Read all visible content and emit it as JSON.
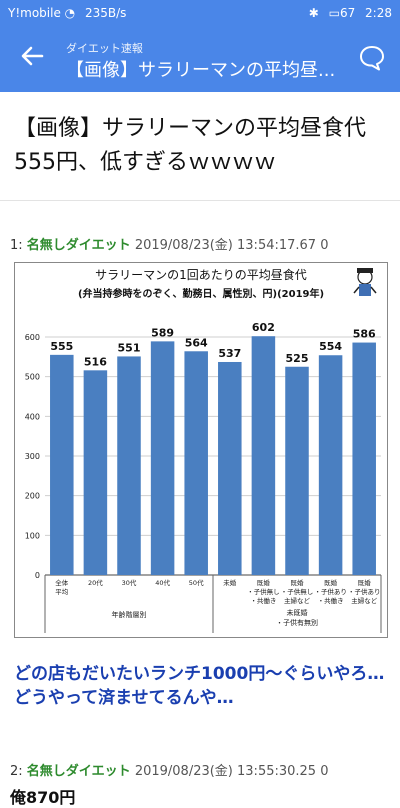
{
  "status_bar": {
    "carrier": "Y!mobile",
    "speed": "235B/s",
    "battery": "67",
    "time": "2:28"
  },
  "app_bar": {
    "subtitle": "ダイエット速報",
    "title": "【画像】サラリーマンの平均昼...",
    "back_icon": "arrow-left-icon",
    "comment_icon": "chat-bubble-icon"
  },
  "article": {
    "headline": "【画像】サラリーマンの平均昼食代555円、低すぎるｗｗｗｗ"
  },
  "posts": [
    {
      "num": "1:",
      "name": "名無しダイエット",
      "date": "2019/08/23(金) 13:54:17.67 0"
    },
    {
      "num": "2:",
      "name": "名無しダイエット",
      "date": "2019/08/23(金) 13:55:30.25 0"
    }
  ],
  "reply1": "どの店もだいたいランチ1000円〜ぐらいやろ…どうやって済ませてるんや…",
  "reply2": "俺870円",
  "chart_data": {
    "type": "bar",
    "title": "サラリーマンの1回あたりの平均昼食代",
    "subtitle": "(弁当持参時をのぞく、勤務日、属性別、円)(2019年)",
    "categories": [
      "全体平均",
      "20代",
      "30代",
      "40代",
      "50代",
      "未婚",
      "既婚・子供無し・共働き",
      "既婚・子供無し・主婦など",
      "既婚・子供あり・共働き",
      "既婚・子供あり・主婦など"
    ],
    "category_lines": [
      [
        "全体",
        "平均"
      ],
      [
        "20代"
      ],
      [
        "30代"
      ],
      [
        "40代"
      ],
      [
        "50代"
      ],
      [
        "未婚"
      ],
      [
        "既婚",
        "・子供無し",
        "・共働き"
      ],
      [
        "既婚",
        "・子供無し",
        "主婦など"
      ],
      [
        "既婚",
        "・子供あり",
        "・共働き"
      ],
      [
        "既婚",
        "・子供あり",
        "主婦など"
      ]
    ],
    "values": [
      555,
      516,
      551,
      589,
      564,
      537,
      602,
      525,
      554,
      586
    ],
    "ylim": [
      0,
      600
    ],
    "yticks": [
      0,
      100,
      200,
      300,
      400,
      500,
      600
    ],
    "group_labels": [
      "年齢階層別",
      "未既婚",
      "・子供有無別"
    ],
    "bar_color": "#4a7fc1",
    "grid": true
  }
}
